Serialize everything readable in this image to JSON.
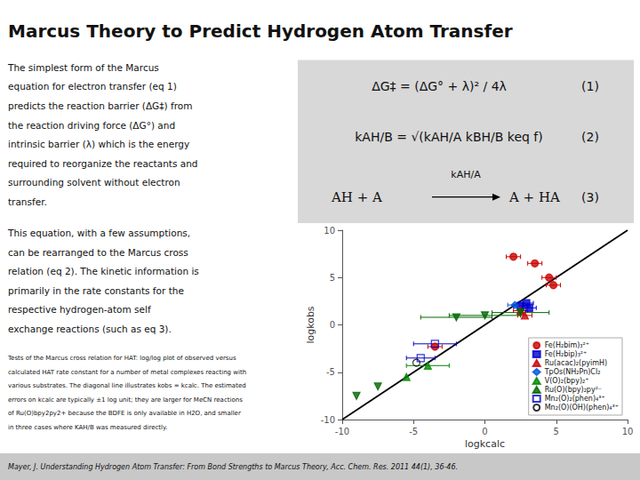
{
  "chart_data": {
    "type": "scatter",
    "title": "Marcus Theory to Predict Hydrogen Atom Transfer",
    "xlabel": "logkcalc",
    "ylabel": "logkobs",
    "xlim": [
      -10,
      10
    ],
    "ylim": [
      -10,
      10
    ],
    "xticks": [
      -10,
      -5,
      0,
      5,
      10
    ],
    "yticks": [
      -10,
      -5,
      0,
      5,
      10
    ],
    "grid": false,
    "legend": "lower right",
    "diagonal": {
      "x": [
        -10,
        10
      ],
      "y": [
        -10,
        10
      ],
      "color": "#000000"
    },
    "series": [
      {
        "name": "Fe(H₂bim)₃²⁺",
        "color": "#cc0000",
        "marker": "circle",
        "x": [
          2.0,
          3.5,
          4.5,
          4.8,
          -3.5
        ],
        "y": [
          7.2,
          6.5,
          5.0,
          4.2,
          -2.3
        ],
        "xerr": [
          0.5,
          0.5,
          0.5,
          0.5,
          0.5
        ]
      },
      {
        "name": "Fe(H₂bip)₃²⁺",
        "color": "#0000cc",
        "marker": "square",
        "x": [
          2.5,
          2.9,
          3.1
        ],
        "y": [
          2.0,
          2.3,
          1.8
        ],
        "xerr": [
          0.5,
          0.5,
          0.5
        ]
      },
      {
        "name": "Ru(acac)₂(pyimH)",
        "color": "#cc0000",
        "marker": "triangle",
        "x": [
          2.5,
          2.8
        ],
        "y": [
          1.5,
          1.0
        ],
        "xerr": [
          0.5,
          0.5
        ]
      },
      {
        "name": "TpOs(NH₂Pn)Cl₂",
        "color": "#0055dd",
        "marker": "diamond",
        "x": [
          2.1
        ],
        "y": [
          2.1
        ],
        "xerr": [
          0.5
        ]
      },
      {
        "name": "V(O)₂(bpy)₂⁺",
        "color": "#008800",
        "marker": "triangle",
        "x": [
          -4.0,
          -5.5
        ],
        "y": [
          -4.3,
          -5.5
        ],
        "xerr": [
          1.5,
          0.0
        ]
      },
      {
        "name": "Ru(O)(bpy)₂py²⁻",
        "color": "#006600",
        "marker": "triangle_down",
        "x": [
          -2.0,
          0.0,
          2.5,
          -7.5,
          -9.0
        ],
        "y": [
          0.8,
          1.0,
          1.3,
          -6.5,
          -7.5
        ],
        "xerr": [
          2.5,
          2.5,
          2.0,
          0.0,
          0.0
        ]
      },
      {
        "name": "Mn₂(O)₂(phen)₄³⁺",
        "color": "#0000cc",
        "marker": "open_square",
        "x": [
          -3.5,
          -4.5
        ],
        "y": [
          -2.0,
          -3.5
        ],
        "xerr": [
          1.5,
          1.0
        ]
      },
      {
        "name": "Mn₂(O)(OH)(phen)₄³⁺",
        "color": "#000000",
        "marker": "open_circle",
        "x": [
          -4.8
        ],
        "y": [
          -4.0
        ],
        "xerr": [
          0.0
        ]
      }
    ],
    "annotations": {
      "paragraph_1": [
        "The simplest form of the Marcus",
        "equation for electron transfer (eq 1)",
        "predicts the reaction barrier (ΔG‡) from",
        "the reaction driving force (ΔG°) and",
        "intrinsic barrier (λ) which is the energy",
        "required to reorganize the reactants and",
        "surrounding solvent without electron",
        "transfer."
      ],
      "paragraph_2": [
        "This equation, with a few assumptions,",
        "can be rearranged to the Marcus cross",
        "relation (eq 2). The kinetic information is",
        "primarily in the rate constants for the",
        "respective hydrogen-atom self",
        "exchange reactions (such as eq 3)."
      ],
      "caption": [
        "Tests of the Marcus cross relation for HAT: log/log plot of observed versus",
        "calculated HAT rate constant for a number of metal complexes reacting with",
        "various substrates. The diagonal line illustrates kobs = kcalc. The estimated",
        "errors on kcalc are typically ±1 log unit; they are larger for MeCN reactions",
        "of Ru(O)bpy2py2+ because the BDFE is only available in H2O, and smaller",
        "in three cases where KAH/B was measured directly."
      ],
      "equations": [
        {
          "text": "ΔG‡ = (ΔG° + λ)² / 4λ",
          "number": "(1)"
        },
        {
          "text": "kAH/B = √(kAH/A kBH/B keq f)",
          "number": "(2)"
        }
      ],
      "scheme": {
        "left": "AH + A",
        "rate": "kAH/A",
        "right": "A + HA",
        "number": "(3)"
      },
      "citation": "Mayer, J. Understanding Hydrogen Atom Transfer: From Bond Strengths to Marcus Theory, Acc. Chem. Res. 2011 44(1), 36-46."
    },
    "panel_colors": {
      "background": "#ffffff",
      "equations": "#d8d8d8",
      "footer": "#c8c8c8"
    }
  }
}
